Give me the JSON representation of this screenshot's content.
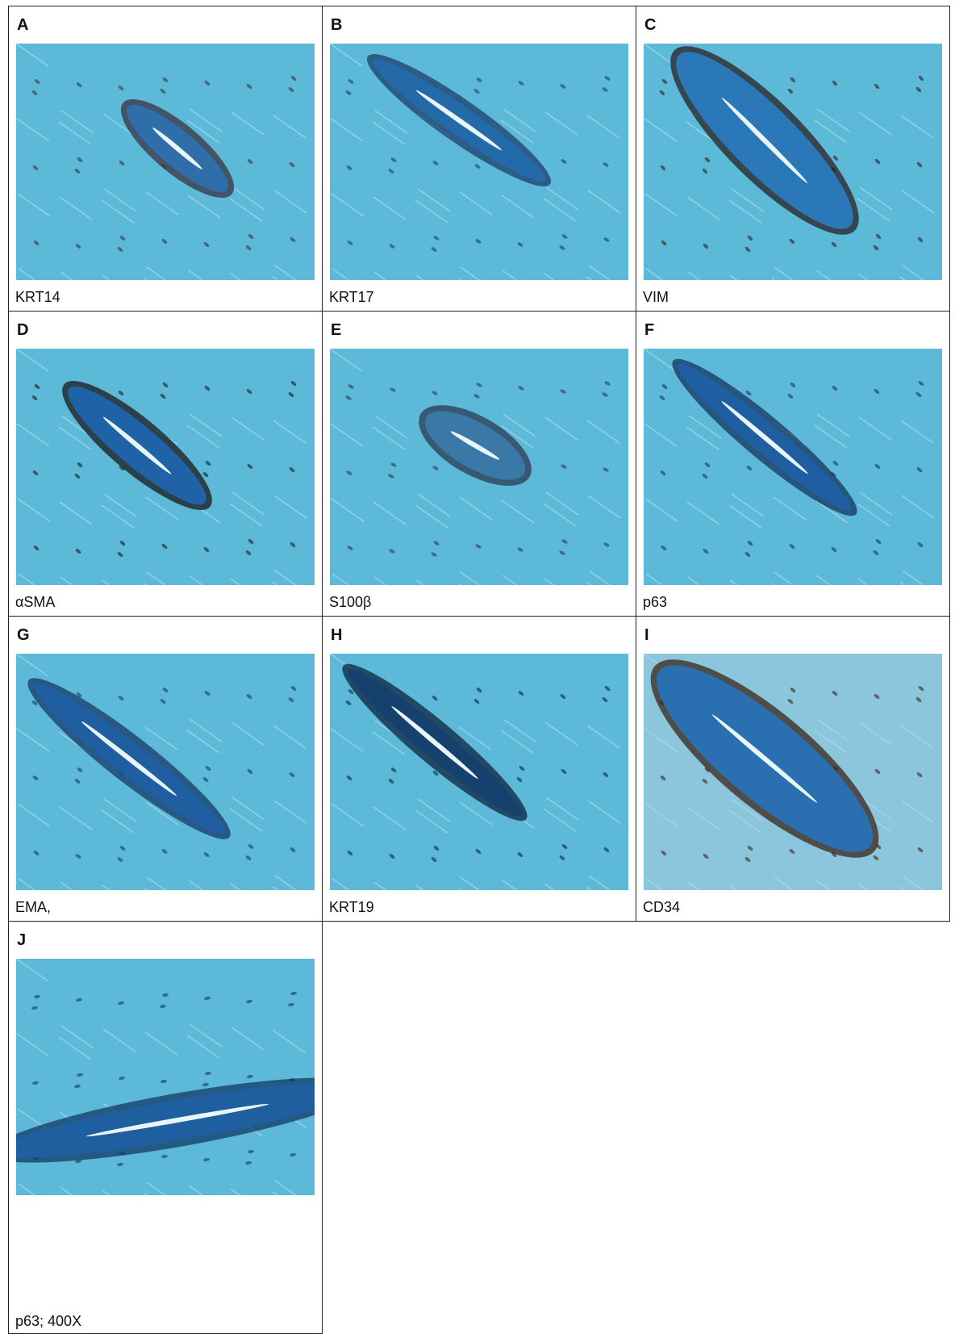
{
  "panels": [
    {
      "letter": "A",
      "label": "KRT14"
    },
    {
      "letter": "B",
      "label": "KRT17"
    },
    {
      "letter": "C",
      "label": "VIM"
    },
    {
      "letter": "D",
      "label": "αSMA"
    },
    {
      "letter": "E",
      "label": "S100β"
    },
    {
      "letter": "F",
      "label": "p63"
    },
    {
      "letter": "G",
      "label": "EMA,"
    },
    {
      "letter": "H",
      "label": "KRT19"
    },
    {
      "letter": "I",
      "label": "CD34"
    },
    {
      "letter": "J",
      "label": "p63; 400X"
    }
  ]
}
